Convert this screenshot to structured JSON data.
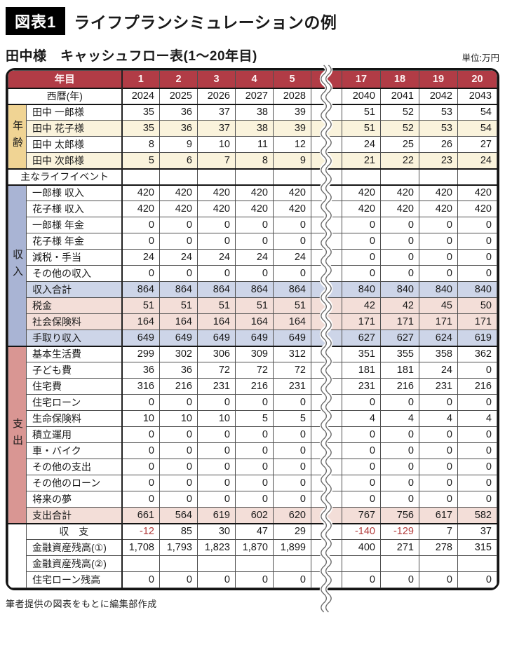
{
  "header": {
    "badge": "図表1",
    "title": "ライフプランシミュレーションの例",
    "subtitle": "田中様　キャッシュフロー表(1〜20年目)",
    "unit_label": "単位:万円"
  },
  "footer": {
    "credit": "筆者提供の図表をもとに編集部作成"
  },
  "colors": {
    "header_red": "#b13c46",
    "age_tan": "#f0d494",
    "income_blue": "#a9b4d4",
    "expense_salmon": "#d99693",
    "row_cream": "#faf3dc",
    "row_blue": "#cdd5e8",
    "row_pink": "#f3ded8",
    "negative_red": "#b23b3b"
  },
  "table": {
    "year_header": {
      "label": "年目",
      "left_years": [
        "1",
        "2",
        "3",
        "4",
        "5"
      ],
      "right_years": [
        "17",
        "18",
        "19",
        "20"
      ]
    },
    "sections": [
      {
        "id": "calendar",
        "side": null,
        "side_class": "",
        "rows": [
          {
            "label": "西暦(年)",
            "merged": true,
            "center": true,
            "bg": "",
            "left": [
              "2024",
              "2025",
              "2026",
              "2027",
              "2028"
            ],
            "right": [
              "2040",
              "2041",
              "2042",
              "2043"
            ]
          }
        ]
      },
      {
        "id": "age",
        "side": "年齢",
        "side_class": "side-age",
        "rows": [
          {
            "label": "田中 一郎様",
            "bg": "",
            "left": [
              "35",
              "36",
              "37",
              "38",
              "39"
            ],
            "right": [
              "51",
              "52",
              "53",
              "54"
            ]
          },
          {
            "label": "田中 花子様",
            "bg": "cream",
            "left": [
              "35",
              "36",
              "37",
              "38",
              "39"
            ],
            "right": [
              "51",
              "52",
              "53",
              "54"
            ]
          },
          {
            "label": "田中 太郎様",
            "bg": "",
            "left": [
              "8",
              "9",
              "10",
              "11",
              "12"
            ],
            "right": [
              "24",
              "25",
              "26",
              "27"
            ]
          },
          {
            "label": "田中 次郎様",
            "bg": "cream",
            "left": [
              "5",
              "6",
              "7",
              "8",
              "9"
            ],
            "right": [
              "21",
              "22",
              "23",
              "24"
            ]
          }
        ]
      },
      {
        "id": "life-event",
        "side": null,
        "side_class": "",
        "rows": [
          {
            "label": "主なライフイベント",
            "merged": true,
            "center": true,
            "bg": "",
            "left": [
              "",
              "",
              "",
              "",
              ""
            ],
            "right": [
              "",
              "",
              "",
              ""
            ]
          }
        ]
      },
      {
        "id": "income",
        "side": "収入",
        "side_class": "side-income",
        "rows": [
          {
            "label": "一郎様 収入",
            "bg": "",
            "left": [
              "420",
              "420",
              "420",
              "420",
              "420"
            ],
            "right": [
              "420",
              "420",
              "420",
              "420"
            ]
          },
          {
            "label": "花子様 収入",
            "bg": "",
            "left": [
              "420",
              "420",
              "420",
              "420",
              "420"
            ],
            "right": [
              "420",
              "420",
              "420",
              "420"
            ]
          },
          {
            "label": "一郎様 年金",
            "bg": "",
            "left": [
              "0",
              "0",
              "0",
              "0",
              "0"
            ],
            "right": [
              "0",
              "0",
              "0",
              "0"
            ]
          },
          {
            "label": "花子様 年金",
            "bg": "",
            "left": [
              "0",
              "0",
              "0",
              "0",
              "0"
            ],
            "right": [
              "0",
              "0",
              "0",
              "0"
            ]
          },
          {
            "label": "減税・手当",
            "bg": "",
            "left": [
              "24",
              "24",
              "24",
              "24",
              "24"
            ],
            "right": [
              "0",
              "0",
              "0",
              "0"
            ]
          },
          {
            "label": "その他の収入",
            "bg": "",
            "left": [
              "0",
              "0",
              "0",
              "0",
              "0"
            ],
            "right": [
              "0",
              "0",
              "0",
              "0"
            ]
          },
          {
            "label": "収入合計",
            "bg": "blue",
            "left": [
              "864",
              "864",
              "864",
              "864",
              "864"
            ],
            "right": [
              "840",
              "840",
              "840",
              "840"
            ]
          },
          {
            "label": "税金",
            "bg": "pink",
            "left": [
              "51",
              "51",
              "51",
              "51",
              "51"
            ],
            "right": [
              "42",
              "42",
              "45",
              "50"
            ]
          },
          {
            "label": "社会保険料",
            "bg": "pink",
            "left": [
              "164",
              "164",
              "164",
              "164",
              "164"
            ],
            "right": [
              "171",
              "171",
              "171",
              "171"
            ]
          },
          {
            "label": "手取り収入",
            "bg": "blue",
            "left": [
              "649",
              "649",
              "649",
              "649",
              "649"
            ],
            "right": [
              "627",
              "627",
              "624",
              "619"
            ]
          }
        ]
      },
      {
        "id": "expense",
        "side": "支出",
        "side_class": "side-expense",
        "rows": [
          {
            "label": "基本生活費",
            "bg": "",
            "left": [
              "299",
              "302",
              "306",
              "309",
              "312"
            ],
            "right": [
              "351",
              "355",
              "358",
              "362"
            ]
          },
          {
            "label": "子ども費",
            "bg": "",
            "left": [
              "36",
              "36",
              "72",
              "72",
              "72"
            ],
            "right": [
              "181",
              "181",
              "24",
              "0"
            ]
          },
          {
            "label": "住宅費",
            "bg": "",
            "left": [
              "316",
              "216",
              "231",
              "216",
              "231"
            ],
            "right": [
              "231",
              "216",
              "231",
              "216"
            ]
          },
          {
            "label": "住宅ローン",
            "bg": "",
            "left": [
              "0",
              "0",
              "0",
              "0",
              "0"
            ],
            "right": [
              "0",
              "0",
              "0",
              "0"
            ]
          },
          {
            "label": "生命保険料",
            "bg": "",
            "left": [
              "10",
              "10",
              "10",
              "5",
              "5"
            ],
            "right": [
              "4",
              "4",
              "4",
              "4"
            ]
          },
          {
            "label": "積立運用",
            "bg": "",
            "left": [
              "0",
              "0",
              "0",
              "0",
              "0"
            ],
            "right": [
              "0",
              "0",
              "0",
              "0"
            ]
          },
          {
            "label": "車・バイク",
            "bg": "",
            "left": [
              "0",
              "0",
              "0",
              "0",
              "0"
            ],
            "right": [
              "0",
              "0",
              "0",
              "0"
            ]
          },
          {
            "label": "その他の支出",
            "bg": "",
            "left": [
              "0",
              "0",
              "0",
              "0",
              "0"
            ],
            "right": [
              "0",
              "0",
              "0",
              "0"
            ]
          },
          {
            "label": "その他のローン",
            "bg": "",
            "left": [
              "0",
              "0",
              "0",
              "0",
              "0"
            ],
            "right": [
              "0",
              "0",
              "0",
              "0"
            ]
          },
          {
            "label": "将来の夢",
            "bg": "",
            "left": [
              "0",
              "0",
              "0",
              "0",
              "0"
            ],
            "right": [
              "0",
              "0",
              "0",
              "0"
            ]
          },
          {
            "label": "支出合計",
            "bg": "pink",
            "left": [
              "661",
              "564",
              "619",
              "602",
              "620"
            ],
            "right": [
              "767",
              "756",
              "617",
              "582"
            ]
          }
        ]
      },
      {
        "id": "summary",
        "side": "",
        "side_class": "side-empty",
        "rows": [
          {
            "label": "収　支",
            "center": true,
            "bg": "",
            "left": [
              "-12",
              "85",
              "30",
              "47",
              "29"
            ],
            "right": [
              "-140",
              "-129",
              "7",
              "37"
            ]
          },
          {
            "label": "金融資産残高(①)",
            "bg": "",
            "left": [
              "1,708",
              "1,793",
              "1,823",
              "1,870",
              "1,899"
            ],
            "right": [
              "400",
              "271",
              "278",
              "315"
            ]
          },
          {
            "label": "金融資産残高(②)",
            "bg": "",
            "left": [
              "",
              "",
              "",
              "",
              ""
            ],
            "right": [
              "",
              "",
              "",
              ""
            ]
          },
          {
            "label": "住宅ローン残高",
            "bg": "",
            "left": [
              "0",
              "0",
              "0",
              "0",
              "0"
            ],
            "right": [
              "0",
              "0",
              "0",
              "0"
            ]
          }
        ]
      }
    ]
  }
}
